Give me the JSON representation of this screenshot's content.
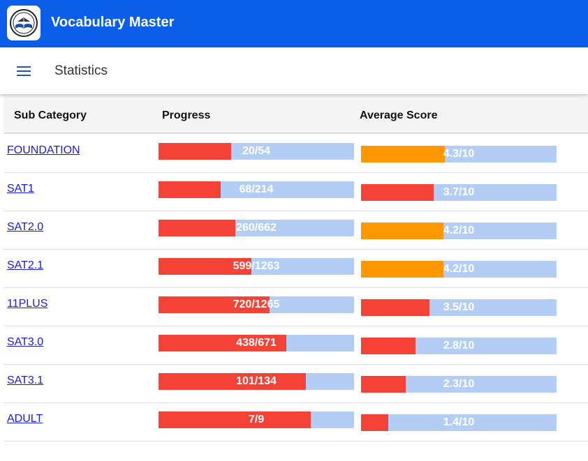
{
  "app": {
    "title": "Vocabulary Master",
    "logo_icon": "book-globe-logo-icon"
  },
  "header": {
    "menu_icon": "hamburger-menu-icon",
    "title": "Statistics"
  },
  "table": {
    "columns": [
      "Sub Category",
      "Progress",
      "Average Score"
    ],
    "rows": [
      {
        "category": "FOUNDATION",
        "done": 20,
        "total": 54,
        "progress_label": "20/54",
        "score": 4.3,
        "score_label": "4.3/10",
        "score_color": "#ff9800"
      },
      {
        "category": "SAT1",
        "done": 68,
        "total": 214,
        "progress_label": "68/214",
        "score": 3.7,
        "score_label": "3.7/10",
        "score_color": "#f44336"
      },
      {
        "category": "SAT2.0",
        "done": 260,
        "total": 662,
        "progress_label": "260/662",
        "score": 4.2,
        "score_label": "4.2/10",
        "score_color": "#ff9800"
      },
      {
        "category": "SAT2.1",
        "done": 599,
        "total": 1263,
        "progress_label": "599/1263",
        "score": 4.2,
        "score_label": "4.2/10",
        "score_color": "#ff9800"
      },
      {
        "category": "11PLUS",
        "done": 720,
        "total": 1265,
        "progress_label": "720/1265",
        "score": 3.5,
        "score_label": "3.5/10",
        "score_color": "#f44336"
      },
      {
        "category": "SAT3.0",
        "done": 438,
        "total": 671,
        "progress_label": "438/671",
        "score": 2.8,
        "score_label": "2.8/10",
        "score_color": "#f44336"
      },
      {
        "category": "SAT3.1",
        "done": 101,
        "total": 134,
        "progress_label": "101/134",
        "score": 2.3,
        "score_label": "2.3/10",
        "score_color": "#f44336"
      },
      {
        "category": "ADULT",
        "done": 7,
        "total": 9,
        "progress_label": "7/9",
        "score": 1.4,
        "score_label": "1.4/10",
        "score_color": "#f44336"
      }
    ]
  },
  "colors": {
    "header_bg": "#0b5ee8",
    "bar_track": "#b3cdf5",
    "progress_fill": "#f44336",
    "score_high": "#ff9800",
    "score_low": "#f44336",
    "link": "#1a1adb"
  }
}
